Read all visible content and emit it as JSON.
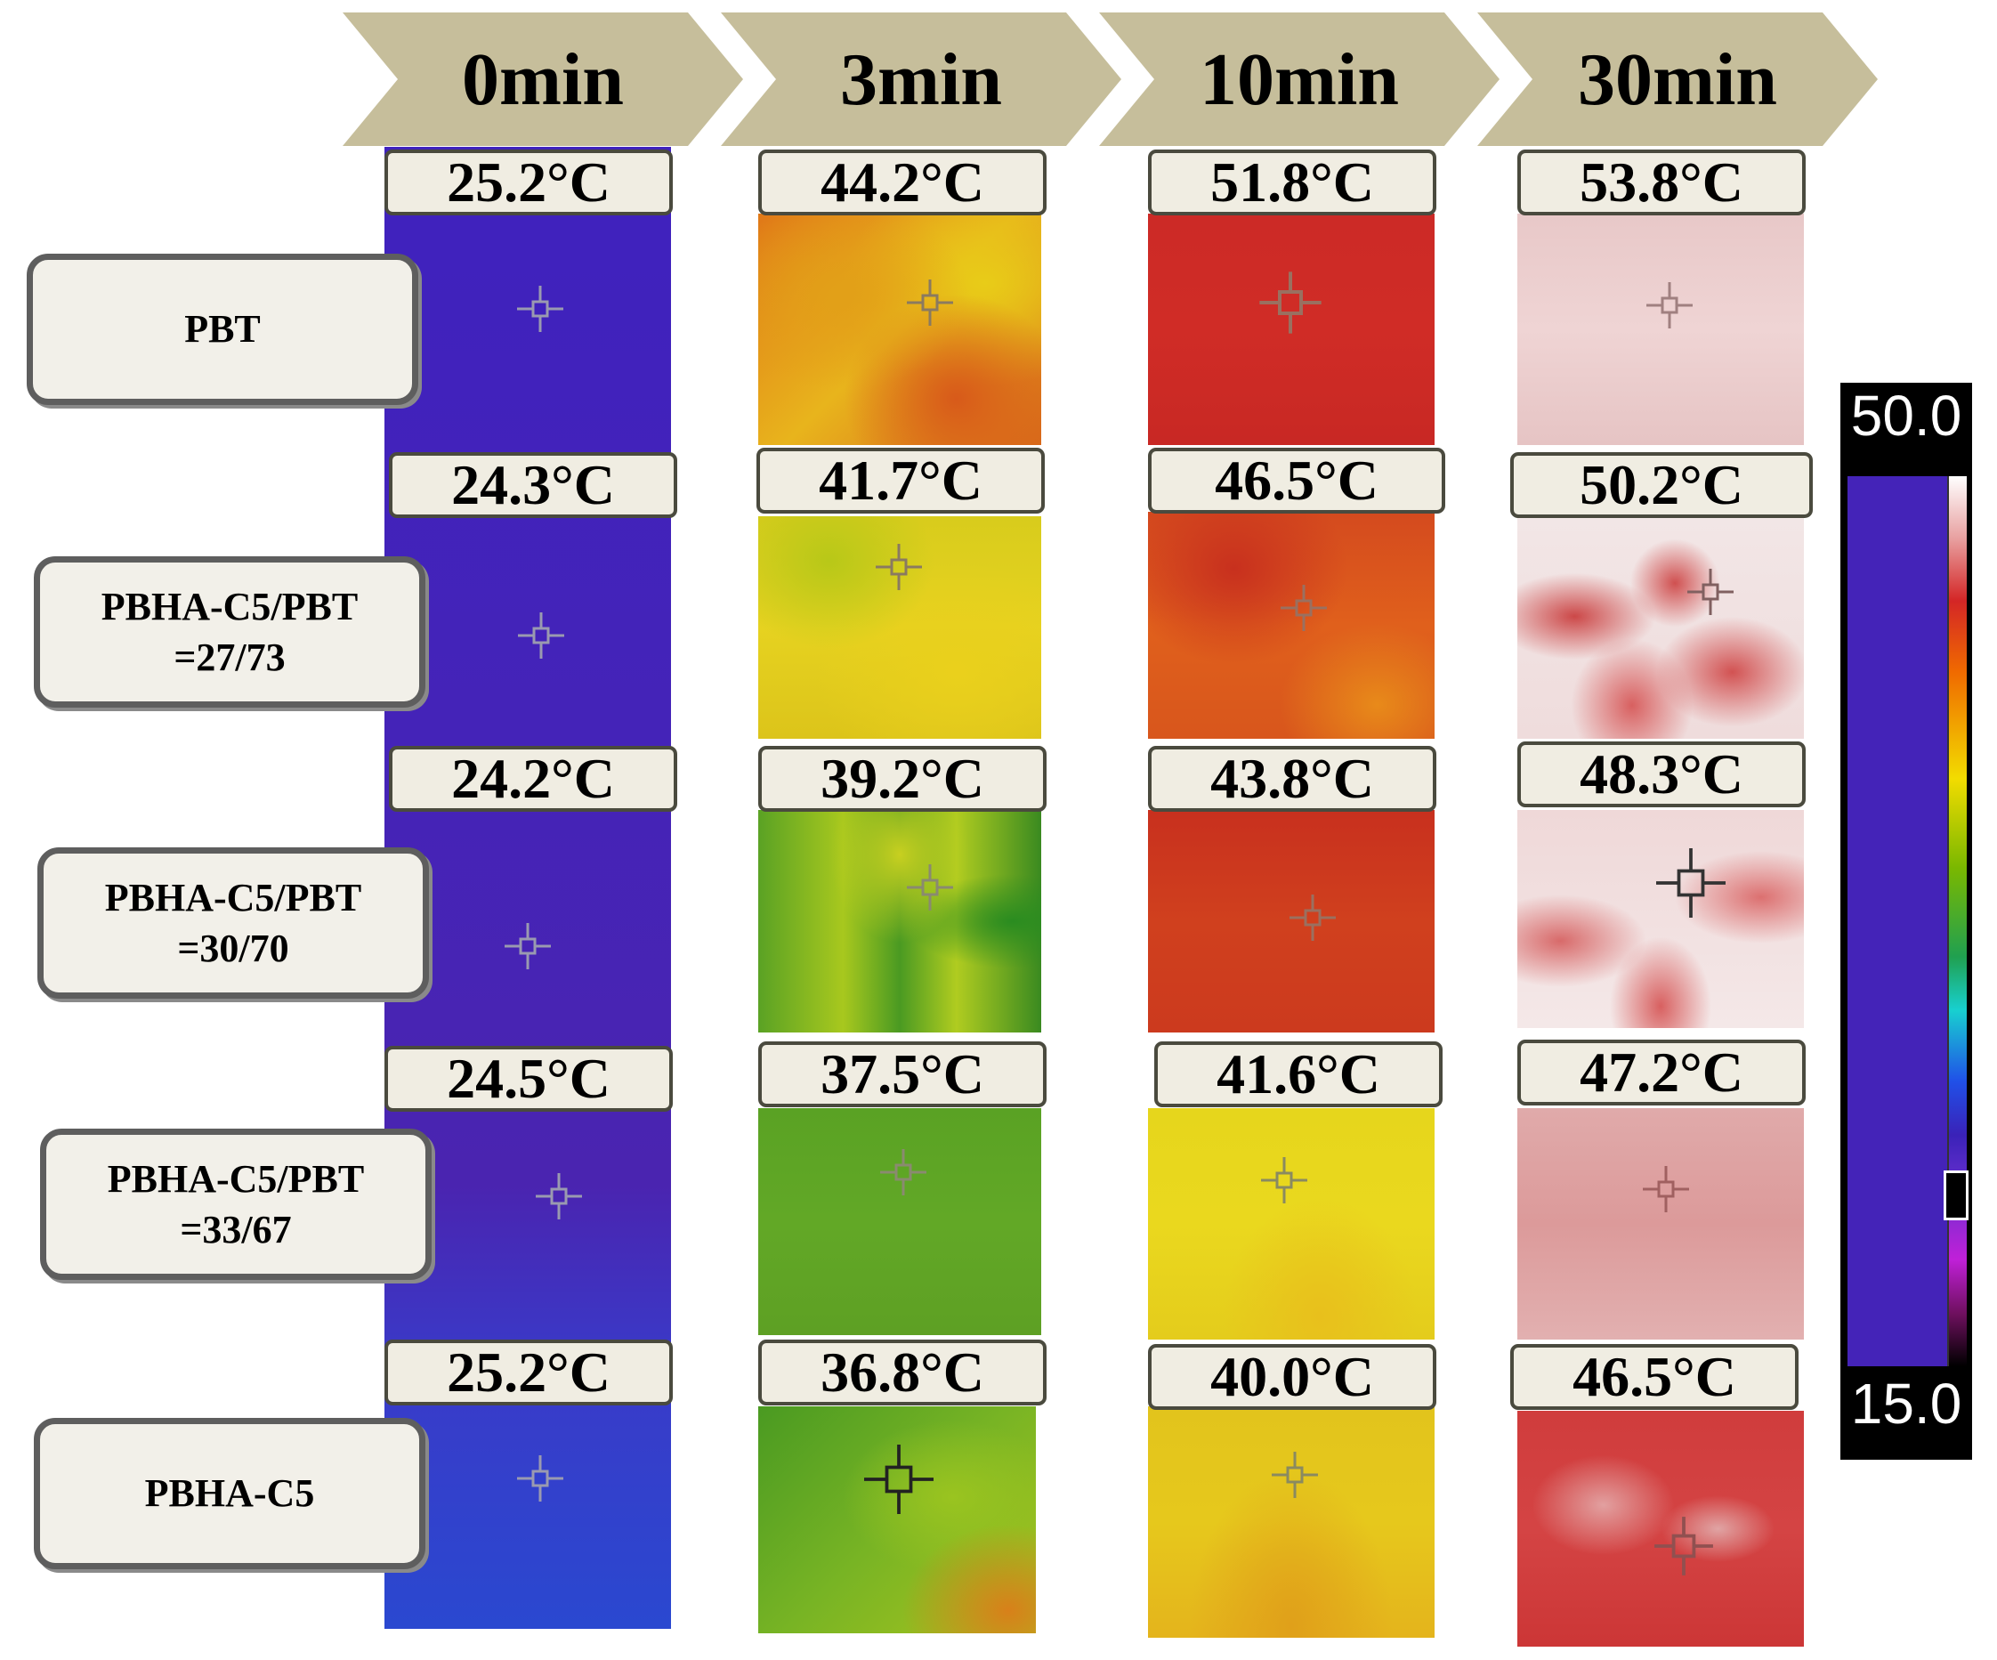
{
  "time_headers": [
    "0min",
    "3min",
    "10min",
    "30min"
  ],
  "rows": [
    {
      "label": [
        "PBT"
      ],
      "temps": [
        "25.2°C",
        "44.2°C",
        "51.8°C",
        "53.8°C"
      ]
    },
    {
      "label": [
        "PBHA-C5/PBT",
        "=27/73"
      ],
      "temps": [
        "24.3°C",
        "41.7°C",
        "46.5°C",
        "50.2°C"
      ]
    },
    {
      "label": [
        "PBHA-C5/PBT",
        "=30/70"
      ],
      "temps": [
        "24.2°C",
        "39.2°C",
        "43.8°C",
        "48.3°C"
      ]
    },
    {
      "label": [
        "PBHA-C5/PBT",
        "=33/67"
      ],
      "temps": [
        "24.5°C",
        "37.5°C",
        "41.6°C",
        "47.2°C"
      ]
    },
    {
      "label": [
        "PBHA-C5"
      ],
      "temps": [
        "25.2°C",
        "36.8°C",
        "40.0°C",
        "46.5°C"
      ]
    }
  ],
  "scale": {
    "max": "50.0",
    "min": "15.0"
  },
  "colors": {
    "header_chevron": "#c6be9b",
    "cold_blue": "#4423b8",
    "warm_yellow": "#e8d61c",
    "green": "#5aa224",
    "orange_red": "#d04a1c",
    "red": "#cc2a26",
    "pale_pink": "#efd4d4"
  }
}
